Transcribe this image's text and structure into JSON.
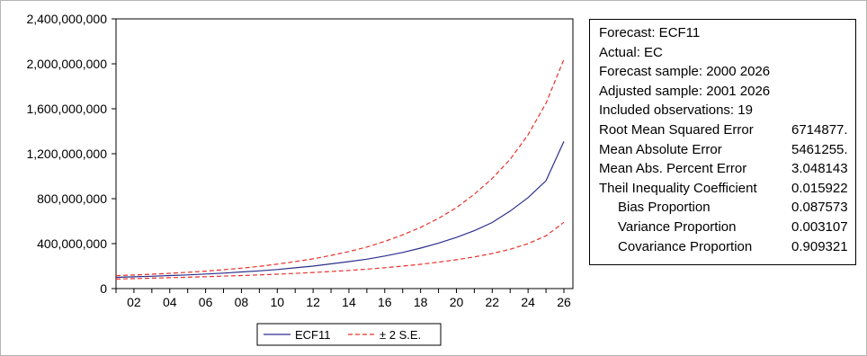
{
  "chart_data": {
    "type": "line",
    "title": "",
    "xlabel": "",
    "ylabel": "",
    "x_tick_labels": [
      "02",
      "04",
      "06",
      "08",
      "10",
      "12",
      "14",
      "16",
      "18",
      "20",
      "22",
      "24",
      "26"
    ],
    "x_tick_years": [
      2002,
      2004,
      2006,
      2008,
      2010,
      2012,
      2014,
      2016,
      2018,
      2020,
      2022,
      2024,
      2026
    ],
    "xlim": [
      2001,
      2026
    ],
    "ylim": [
      0,
      2400000000
    ],
    "y_ticks": [
      0,
      400000000,
      800000000,
      1200000000,
      1600000000,
      2000000000,
      2400000000
    ],
    "y_tick_labels": [
      "0",
      "400,000,000",
      "800,000,000",
      "1,200,000,000",
      "1,600,000,000",
      "2,000,000,000",
      "2,400,000,000"
    ],
    "x": [
      2001,
      2002,
      2003,
      2004,
      2005,
      2006,
      2007,
      2008,
      2009,
      2010,
      2011,
      2012,
      2013,
      2014,
      2015,
      2016,
      2017,
      2018,
      2019,
      2020,
      2021,
      2022,
      2023,
      2024,
      2025,
      2026
    ],
    "series": [
      {
        "name": "ECF11",
        "color": "#2b2f8c",
        "dash": "solid",
        "values": [
          100000000,
          105000000,
          110000000,
          116000000,
          122000000,
          130000000,
          138000000,
          148000000,
          158000000,
          170000000,
          185000000,
          200000000,
          220000000,
          240000000,
          262000000,
          290000000,
          322000000,
          360000000,
          405000000,
          455000000,
          515000000,
          588000000,
          690000000,
          810000000,
          960000000,
          1310000000
        ]
      },
      {
        "name": "± 2 S.E.",
        "color": "#e8312b",
        "dash": "dashed",
        "values": [
          115000000,
          121000000,
          128000000,
          136000000,
          145000000,
          155000000,
          168000000,
          182000000,
          198000000,
          218000000,
          240000000,
          265000000,
          295000000,
          330000000,
          370000000,
          420000000,
          478000000,
          545000000,
          625000000,
          720000000,
          840000000,
          980000000,
          1150000000,
          1370000000,
          1650000000,
          2040000000
        ]
      },
      {
        "name": "",
        "color": "#e8312b",
        "dash": "dashed",
        "values": [
          85000000,
          89000000,
          93000000,
          97000000,
          101000000,
          106000000,
          111000000,
          116000000,
          122000000,
          128000000,
          135000000,
          143000000,
          152000000,
          162000000,
          173000000,
          186000000,
          200000000,
          216000000,
          235000000,
          257000000,
          282000000,
          312000000,
          350000000,
          400000000,
          470000000,
          590000000
        ]
      }
    ],
    "legend": [
      {
        "label": "ECF11",
        "color": "#2b2f8c",
        "dash": "solid"
      },
      {
        "label": "± 2 S.E.",
        "color": "#e8312b",
        "dash": "dashed"
      }
    ],
    "legend_position": "bottom-center",
    "grid": false
  },
  "stats": {
    "lines": [
      "Forecast: ECF11",
      "Actual: EC",
      "Forecast sample: 2000 2026",
      "Adjusted sample: 2001 2026",
      "Included observations: 19"
    ],
    "rows": [
      {
        "name": "Root Mean Squared Error",
        "value": "6714877.",
        "indent": false
      },
      {
        "name": "Mean Absolute Error",
        "value": "5461255.",
        "indent": false
      },
      {
        "name": "Mean Abs. Percent Error",
        "value": "3.048143",
        "indent": false
      },
      {
        "name": "Theil Inequality Coefficient",
        "value": "0.015922",
        "indent": false
      },
      {
        "name": "Bias Proportion",
        "value": "0.087573",
        "indent": true
      },
      {
        "name": "Variance Proportion",
        "value": "0.003107",
        "indent": true
      },
      {
        "name": "Covariance Proportion",
        "value": "0.909321",
        "indent": true
      }
    ]
  }
}
